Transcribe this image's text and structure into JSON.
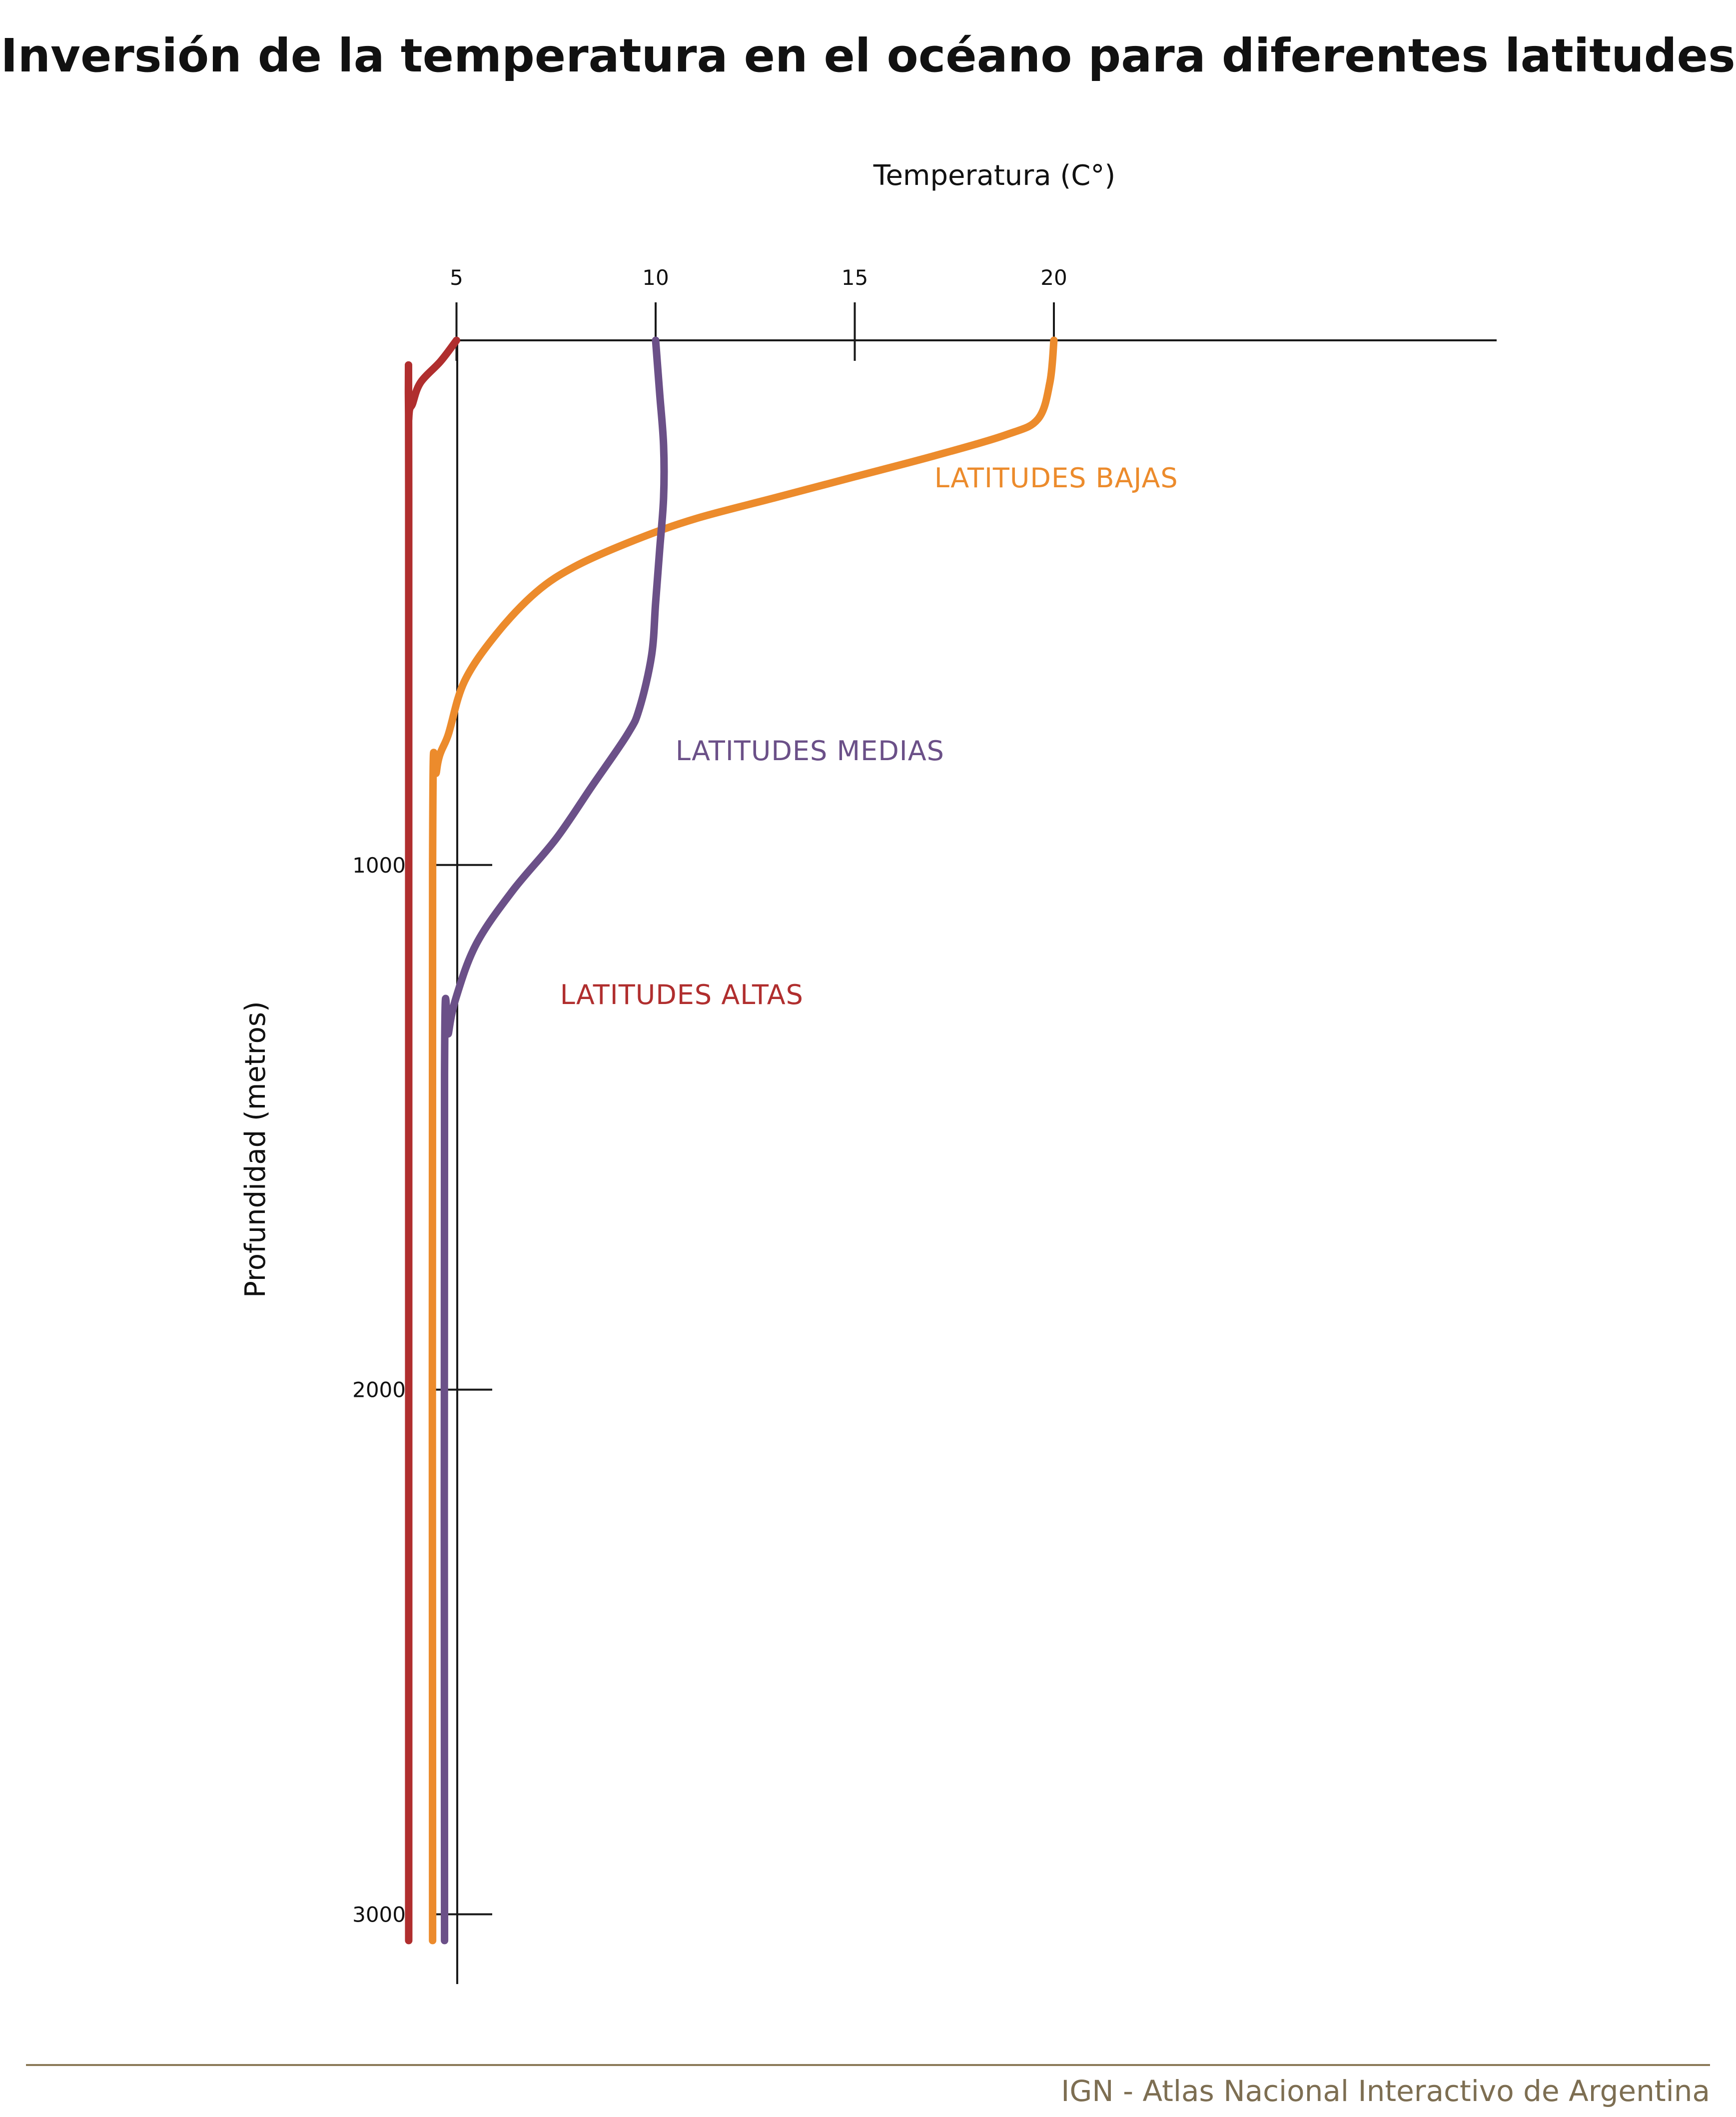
{
  "title": "Inversión de la temperatura en el océano para diferentes latitudes",
  "footer": "IGN - Atlas Nacional Interactivo de Argentina",
  "chart_data": {
    "type": "line",
    "title": "Inversión de la temperatura en el océano para diferentes latitudes",
    "xlabel": "Temperatura (C°)",
    "ylabel": "Profundidad (metros)",
    "x_ticks": [
      5,
      10,
      15,
      20
    ],
    "y_ticks": [
      1000,
      2000,
      3000
    ],
    "xlim": [
      -1,
      24
    ],
    "ylim": [
      0,
      3150
    ],
    "y_inverted": true,
    "x_axis_position": "top",
    "grid": false,
    "legend": "none",
    "series": [
      {
        "name": "LATITUDES BAJAS",
        "color": "#ec8b2c",
        "x": [
          20.0,
          19.9,
          19.6,
          18.8,
          17.0,
          15.0,
          13.0,
          11.0,
          9.5,
          8.0,
          7.0,
          6.0,
          5.2,
          4.8,
          4.5,
          4.4,
          4.4
        ],
        "y": [
          0,
          80,
          150,
          180,
          220,
          260,
          300,
          340,
          380,
          430,
          480,
          560,
          650,
          750,
          820,
          1000,
          3050
        ]
      },
      {
        "name": "LATITUDES MEDIAS",
        "color": "#6b5088",
        "x": [
          10.0,
          10.1,
          10.2,
          10.2,
          10.1,
          10.0,
          9.9,
          9.6,
          9.3,
          8.4,
          7.5,
          6.4,
          5.5,
          5.0,
          4.8,
          4.7,
          4.7
        ],
        "y": [
          0,
          100,
          200,
          300,
          400,
          500,
          600,
          700,
          750,
          850,
          950,
          1050,
          1150,
          1250,
          1320,
          1400,
          3050
        ]
      },
      {
        "name": "LATITUDES ALTAS",
        "color": "#b02e2e",
        "x": [
          5.0,
          4.6,
          4.1,
          3.9,
          3.8,
          3.8,
          3.8
        ],
        "y": [
          0,
          40,
          80,
          120,
          150,
          300,
          3050
        ]
      }
    ],
    "annotations": [
      {
        "text": "LATITUDES BAJAS",
        "x": 17.0,
        "y": 280,
        "color": "#ec8b2c"
      },
      {
        "text": "LATITUDES MEDIAS",
        "x": 10.5,
        "y": 800,
        "color": "#6b5088"
      },
      {
        "text": "LATITUDES ALTAS",
        "x": 7.6,
        "y": 1265,
        "color": "#b02e2e"
      }
    ]
  }
}
